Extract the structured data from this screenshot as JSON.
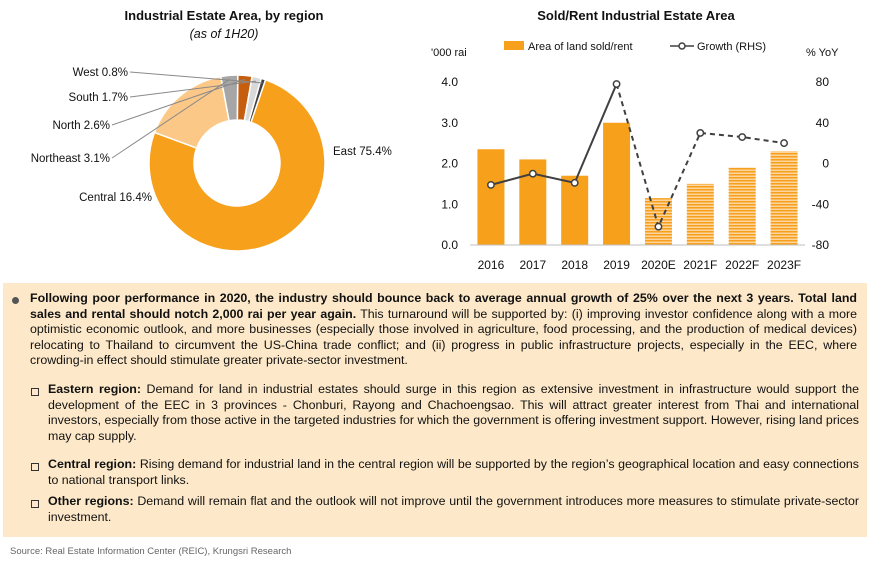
{
  "chart_data": [
    {
      "type": "pie",
      "title": "Industrial Estate Area, by region",
      "subtitle": "(as of 1H20)",
      "slices": [
        {
          "label": "East 75.4%",
          "value": 75.4,
          "color": "#f7a01b"
        },
        {
          "label": "Central 16.4%",
          "value": 16.4,
          "color": "#fbc887"
        },
        {
          "label": "Northeast 3.1%",
          "value": 3.1,
          "color": "#a6a6a6"
        },
        {
          "label": "North 2.6%",
          "value": 2.6,
          "color": "#c65e10"
        },
        {
          "label": "South 1.7%",
          "value": 1.7,
          "color": "#d9d9d9"
        },
        {
          "label": "West 0.8%",
          "value": 0.8,
          "color": "#404040"
        }
      ]
    },
    {
      "type": "bar",
      "title": "Sold/Rent Industrial Estate Area",
      "ylabel_left": "'000 rai",
      "ylabel_right": "% YoY",
      "categories": [
        "2016",
        "2017",
        "2018",
        "2019",
        "2020E",
        "2021F",
        "2022F",
        "2023F"
      ],
      "series": [
        {
          "name": "Area of land sold/rent",
          "type": "bar",
          "values": [
            2.35,
            2.1,
            1.7,
            3.0,
            1.15,
            1.5,
            1.9,
            2.3
          ],
          "color": "#f7a01b"
        },
        {
          "name": "Growth (RHS)",
          "type": "line",
          "values": [
            -21,
            -10,
            -19,
            78,
            -62,
            30,
            26,
            20
          ],
          "color": "#404040"
        }
      ],
      "ylim_left": [
        0,
        4
      ],
      "yticks_left": [
        "0.0",
        "1.0",
        "2.0",
        "3.0",
        "4.0"
      ],
      "ylim_right": [
        -80,
        80
      ],
      "yticks_right": [
        "-80",
        "-40",
        "0",
        "40",
        "80"
      ],
      "forecast_from_index": 4,
      "legend": "top"
    }
  ],
  "text": {
    "p1_bold": "Following poor performance in 2020, the industry should bounce back to average annual growth of 25% over the next 3 years. Total land sales and rental should notch 2,000 rai per year again.",
    "p1_rest": " This turnaround will be supported by: (i) improving investor confidence along with a more optimistic economic outlook, and more businesses (especially those involved in agriculture, food processing, and the production of medical devices) relocating to Thailand to circumvent the US-China trade conflict; and (ii) progress in public infrastructure projects, especially in the EEC, where crowding-in effect should stimulate greater private-sector investment.",
    "b1_bold": "Eastern region:",
    "b1_rest": " Demand for land in industrial estates should surge in this region as extensive investment in infrastructure would support the development of the EEC in 3 provinces - Chonburi, Rayong and Chachoengsao. This will attract greater interest from Thai and international investors, especially from those active in the targeted industries for which the government is offering investment support. However, rising land prices may cap supply.",
    "b2_bold": "Central region:",
    "b2_rest": " Rising demand for industrial land in the central region will be supported by the region’s geographical location and easy connections to national transport links.",
    "b3_bold": "Other regions:",
    "b3_rest": " Demand will remain flat and the outlook will not improve until the government introduces more measures to stimulate private-sector investment."
  },
  "source": "Source: Real Estate Information Center (REIC), Krungsri Research"
}
